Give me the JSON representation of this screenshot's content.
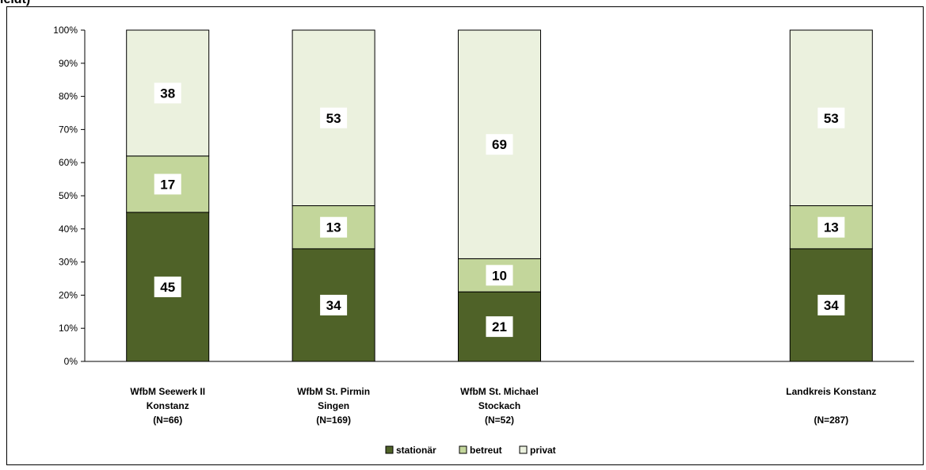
{
  "header_fragment": "leidt)",
  "chart_data": {
    "type": "bar",
    "stacked": true,
    "percent": true,
    "categories": [
      [
        "WfbM Seewerk II",
        "Konstanz",
        "(N=66)"
      ],
      [
        "WfbM St. Pirmin",
        "Singen",
        "(N=169)"
      ],
      [
        "WfbM St. Michael",
        "Stockach",
        "(N=52)"
      ],
      [
        "",
        "",
        ""
      ],
      [
        "Landkreis Konstanz",
        "",
        "(N=287)"
      ]
    ],
    "series": [
      {
        "name": "stationär",
        "color": "#4f6228",
        "values": [
          45,
          34,
          21,
          null,
          34
        ]
      },
      {
        "name": "betreut",
        "color": "#c3d69b",
        "values": [
          17,
          13,
          10,
          null,
          13
        ]
      },
      {
        "name": "privat",
        "color": "#ebf1de",
        "values": [
          38,
          53,
          69,
          null,
          53
        ]
      }
    ],
    "ylim": [
      0,
      100
    ],
    "yticks": [
      "0%",
      "10%",
      "20%",
      "30%",
      "40%",
      "50%",
      "60%",
      "70%",
      "80%",
      "90%",
      "100%"
    ],
    "legend_position": "bottom",
    "grid": false
  }
}
